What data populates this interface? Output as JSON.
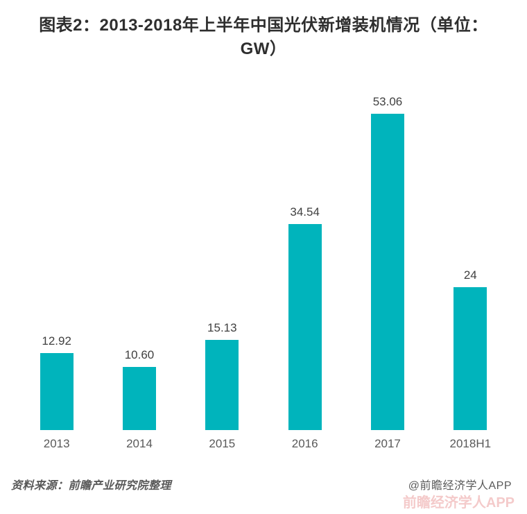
{
  "title": {
    "line1": "图表2：2013-2018年上半年中国光伏新增装机情况（单位：",
    "line2": "GW）"
  },
  "chart_data": {
    "type": "bar",
    "title": "图表2：2013-2018年上半年中国光伏新增装机情况（单位：GW）",
    "categories": [
      "2013",
      "2014",
      "2015",
      "2016",
      "2017",
      "2018H1"
    ],
    "values": [
      12.92,
      10.6,
      15.13,
      34.54,
      53.06,
      24
    ],
    "value_labels": [
      "12.92",
      "10.60",
      "15.13",
      "34.54",
      "53.06",
      "24"
    ],
    "xlabel": "",
    "ylabel": "",
    "ylim": [
      0,
      55
    ],
    "grid": false,
    "legend": "none",
    "bar_color": "#00B4BC",
    "value_label_color": "#404040",
    "axis_label_color": "#595959"
  },
  "footer": {
    "source": "资料来源：前瞻产业研究院整理",
    "credit": "@前瞻经济学人APP",
    "watermark": "前瞻经济学人APP"
  }
}
